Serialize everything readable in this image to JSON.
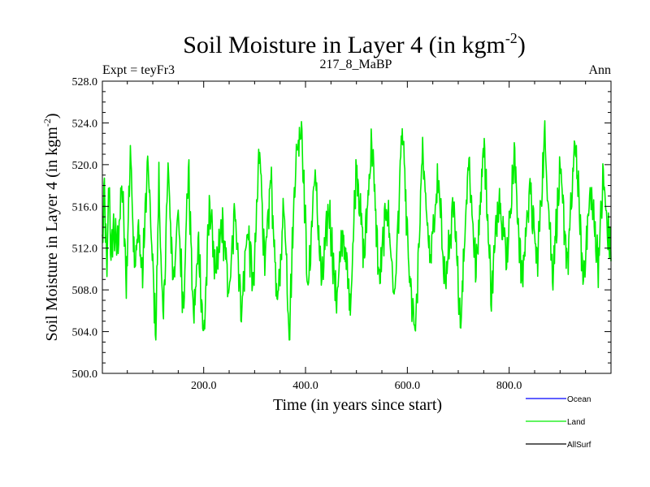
{
  "chart_data": {
    "type": "line",
    "title": "Soil Moisture in Layer 4 (in kgm",
    "title_sup": "-2",
    "title_close": ")",
    "subtitle_left": "Expt = teyFr3",
    "subtitle_center": "217_8_MaBP",
    "subtitle_right": "Ann",
    "ylabel": "Soil Moisture in Layer 4 (in kgm",
    "ylabel_sup": "-2",
    "ylabel_close": ")",
    "xlabel": "Time (in years since start)",
    "xlim": [
      1,
      1000
    ],
    "ylim": [
      500,
      528
    ],
    "xticks": [
      200,
      400,
      600,
      800
    ],
    "xtick_labels": [
      "200.0",
      "400.0",
      "600.0",
      "800.0"
    ],
    "yticks": [
      500,
      504,
      508,
      512,
      516,
      520,
      524,
      528
    ],
    "ytick_labels": [
      "500.0",
      "504.0",
      "508.0",
      "512.0",
      "516.0",
      "520.0",
      "524.0",
      "528.0"
    ],
    "series": [
      {
        "name": "Ocean",
        "color": "#0000ff",
        "values": []
      },
      {
        "name": "Land",
        "color": "#00ee00",
        "values": []
      },
      {
        "name": "AllSurf",
        "color": "#000000",
        "values": []
      }
    ],
    "land_keypoints": {
      "x": [
        1,
        5,
        10,
        14,
        18,
        22,
        30,
        40,
        48,
        56,
        64,
        72,
        80,
        90,
        100,
        106,
        112,
        120,
        130,
        140,
        150,
        160,
        170,
        180,
        190,
        200,
        212,
        224,
        236,
        250,
        262,
        274,
        286,
        298,
        310,
        320,
        332,
        345,
        358,
        368,
        380,
        392,
        405,
        418,
        432,
        446,
        460,
        474,
        488,
        500,
        515,
        530,
        545,
        560,
        575,
        590,
        604,
        616,
        630,
        645,
        660,
        675,
        690,
        705,
        720,
        735,
        750,
        765,
        780,
        795,
        810,
        825,
        840,
        855,
        870,
        885,
        900,
        915,
        930,
        945,
        960,
        975,
        985,
        992,
        1000
      ],
      "y": [
        512.0,
        517.5,
        509.0,
        519.5,
        510.5,
        514.0,
        512.0,
        518.0,
        508.5,
        521.5,
        511.0,
        513.5,
        509.5,
        520.5,
        510.0,
        503.5,
        518.5,
        504.2,
        519.5,
        509.0,
        515.0,
        506.5,
        519.8,
        505.0,
        512.5,
        503.2,
        516.5,
        509.0,
        514.5,
        507.5,
        516.0,
        505.8,
        514.0,
        508.0,
        522.5,
        509.5,
        519.0,
        506.0,
        516.5,
        503.8,
        520.0,
        524.2,
        507.5,
        519.5,
        508.5,
        516.0,
        507.0,
        513.5,
        506.5,
        520.5,
        511.0,
        522.5,
        508.5,
        516.5,
        507.0,
        523.5,
        509.0,
        503.5,
        521.5,
        510.5,
        518.5,
        508.5,
        516.0,
        505.0,
        521.0,
        509.5,
        522.5,
        507.5,
        517.5,
        511.0,
        521.0,
        508.5,
        518.0,
        510.5,
        522.8,
        509.5,
        519.0,
        510.5,
        522.5,
        509.0,
        517.5,
        510.5,
        519.0,
        514.0,
        512.0
      ]
    }
  }
}
